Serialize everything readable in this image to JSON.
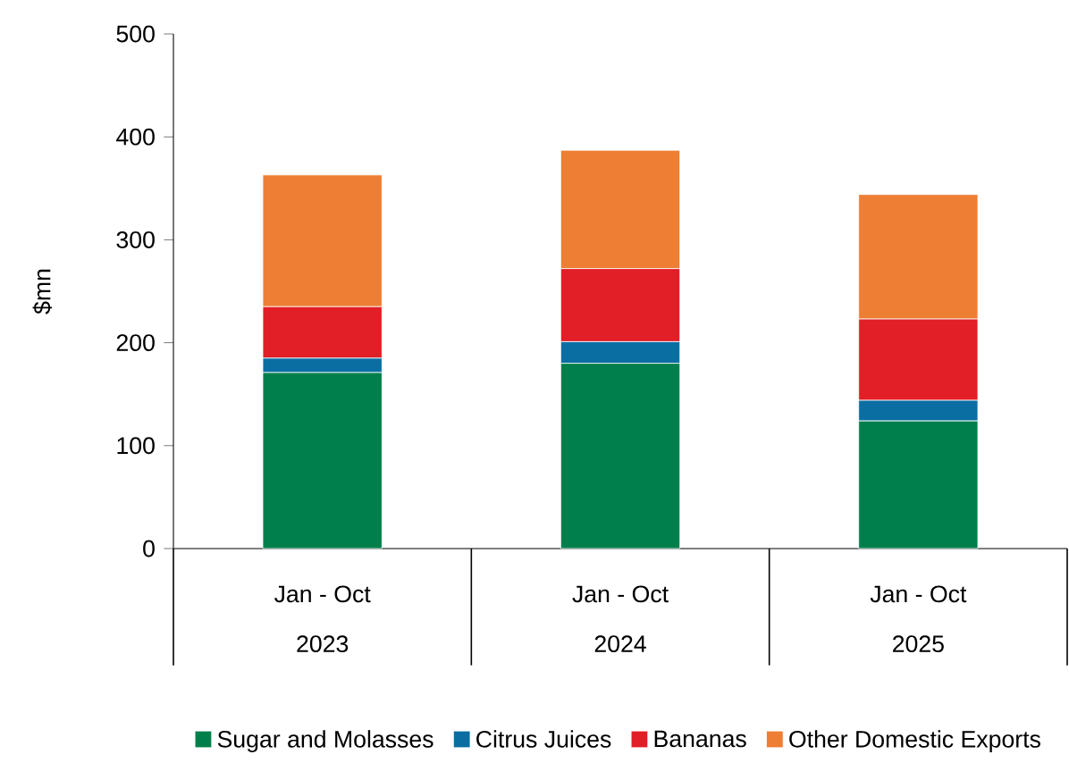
{
  "chart_data": {
    "type": "bar",
    "stacked": true,
    "ylabel": "$mn",
    "categories": [
      "Jan - Oct",
      "Jan - Oct",
      "Jan - Oct"
    ],
    "annotations": [
      "2023",
      "2024",
      "2025"
    ],
    "series": [
      {
        "name": "Sugar and Molasses",
        "color": "#007f4c",
        "values": [
          171,
          180,
          124
        ]
      },
      {
        "name": "Citrus Juices",
        "color": "#0a6ea3",
        "values": [
          14,
          21,
          20
        ]
      },
      {
        "name": "Bananas",
        "color": "#e21e26",
        "values": [
          50,
          71,
          79
        ]
      },
      {
        "name": "Other Domestic Exports",
        "color": "#ed7e33",
        "values": [
          128,
          115,
          121
        ]
      }
    ],
    "ylim": [
      0,
      500
    ],
    "yticks": [
      0,
      100,
      200,
      300,
      400,
      500
    ],
    "grid": false,
    "legend": "bottom"
  }
}
